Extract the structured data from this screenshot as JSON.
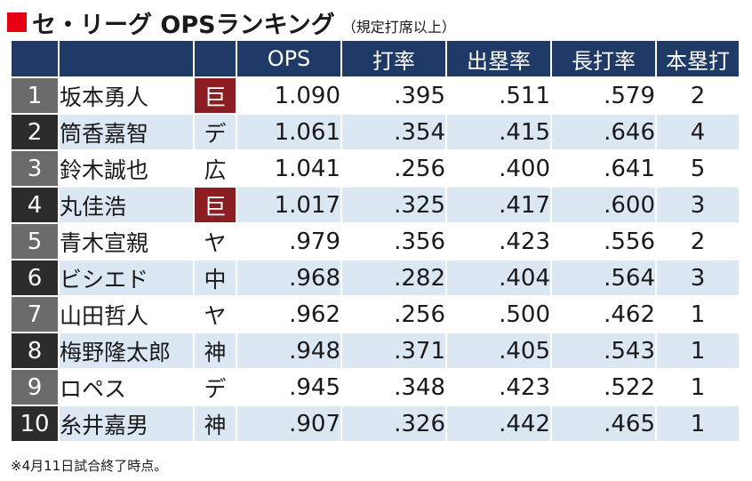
{
  "title": {
    "main": "セ・リーグ OPSランキング",
    "note": "（規定打席以上）"
  },
  "colors": {
    "accent_square": "#e60012",
    "header_bg": "#1f3a66",
    "rank_odd_bg": "#6b6b6b",
    "rank_even_bg": "#2c2c2c",
    "row_even_bg": "#dbe7f3",
    "giants_badge_bg": "#8b1d23"
  },
  "table": {
    "headers": [
      "",
      "",
      "",
      "OPS",
      "打率",
      "出塁率",
      "長打率",
      "本塁打"
    ],
    "rows": [
      {
        "rank": "1",
        "name": "坂本勇人",
        "team": "巨",
        "ops": "1.090",
        "avg": ".395",
        "obp": ".511",
        "slg": ".579",
        "hr": "2",
        "giants": true
      },
      {
        "rank": "2",
        "name": "筒香嘉智",
        "team": "デ",
        "ops": "1.061",
        "avg": ".354",
        "obp": ".415",
        "slg": ".646",
        "hr": "4",
        "giants": false
      },
      {
        "rank": "3",
        "name": "鈴木誠也",
        "team": "広",
        "ops": "1.041",
        "avg": ".256",
        "obp": ".400",
        "slg": ".641",
        "hr": "5",
        "giants": false
      },
      {
        "rank": "4",
        "name": "丸佳浩",
        "team": "巨",
        "ops": "1.017",
        "avg": ".325",
        "obp": ".417",
        "slg": ".600",
        "hr": "3",
        "giants": true
      },
      {
        "rank": "5",
        "name": "青木宣親",
        "team": "ヤ",
        "ops": ".979",
        "avg": ".356",
        "obp": ".423",
        "slg": ".556",
        "hr": "2",
        "giants": false
      },
      {
        "rank": "6",
        "name": "ビシエド",
        "team": "中",
        "ops": ".968",
        "avg": ".282",
        "obp": ".404",
        "slg": ".564",
        "hr": "3",
        "giants": false
      },
      {
        "rank": "7",
        "name": "山田哲人",
        "team": "ヤ",
        "ops": ".962",
        "avg": ".256",
        "obp": ".500",
        "slg": ".462",
        "hr": "1",
        "giants": false
      },
      {
        "rank": "8",
        "name": "梅野隆太郎",
        "team": "神",
        "ops": ".948",
        "avg": ".371",
        "obp": ".405",
        "slg": ".543",
        "hr": "1",
        "giants": false
      },
      {
        "rank": "9",
        "name": "ロペス",
        "team": "デ",
        "ops": ".945",
        "avg": ".348",
        "obp": ".423",
        "slg": ".522",
        "hr": "1",
        "giants": false
      },
      {
        "rank": "10",
        "name": "糸井嘉男",
        "team": "神",
        "ops": ".907",
        "avg": ".326",
        "obp": ".442",
        "slg": ".465",
        "hr": "1",
        "giants": false
      }
    ]
  },
  "footnote": "※4月11日試合終了時点。"
}
